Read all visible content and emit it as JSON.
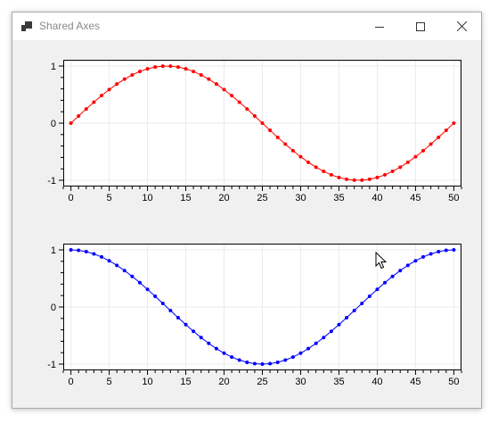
{
  "window": {
    "title": "Shared Axes",
    "icon": "app-icon",
    "controls": [
      "minimize-icon",
      "maximize-icon",
      "close-icon"
    ]
  },
  "colors": {
    "series_top": "#ff0000",
    "series_bottom": "#0000ff",
    "grid": "#ebebeb",
    "axis": "#000000"
  },
  "chart_data": [
    {
      "type": "scatter",
      "title": "",
      "xlabel": "",
      "ylabel": "",
      "xlim": [
        -1,
        51
      ],
      "ylim": [
        -1,
        1
      ],
      "xticks": [
        0,
        5,
        10,
        15,
        20,
        25,
        30,
        35,
        40,
        45,
        50
      ],
      "yticks": [
        -1,
        0,
        1
      ],
      "grid": true,
      "legend": "none",
      "series": [
        {
          "color": "#ff0000",
          "x": [
            0,
            1,
            2,
            3,
            4,
            5,
            6,
            7,
            8,
            9,
            10,
            11,
            12,
            13,
            14,
            15,
            16,
            17,
            18,
            19,
            20,
            21,
            22,
            23,
            24,
            25,
            26,
            27,
            28,
            29,
            30,
            31,
            32,
            33,
            34,
            35,
            36,
            37,
            38,
            39,
            40,
            41,
            42,
            43,
            44,
            45,
            46,
            47,
            48,
            49,
            50
          ],
          "y": [
            0,
            0.125,
            0.249,
            0.368,
            0.482,
            0.588,
            0.685,
            0.771,
            0.844,
            0.905,
            0.951,
            0.982,
            0.998,
            0.998,
            0.982,
            0.951,
            0.905,
            0.844,
            0.771,
            0.685,
            0.588,
            0.482,
            0.368,
            0.249,
            0.125,
            0,
            -0.125,
            -0.249,
            -0.368,
            -0.482,
            -0.588,
            -0.685,
            -0.771,
            -0.844,
            -0.905,
            -0.951,
            -0.982,
            -0.998,
            -0.998,
            -0.982,
            -0.951,
            -0.905,
            -0.844,
            -0.771,
            -0.685,
            -0.588,
            -0.482,
            -0.368,
            -0.249,
            -0.125,
            0
          ]
        }
      ]
    },
    {
      "type": "scatter",
      "title": "",
      "xlabel": "",
      "ylabel": "",
      "xlim": [
        -1,
        51
      ],
      "ylim": [
        -1,
        1
      ],
      "xticks": [
        0,
        5,
        10,
        15,
        20,
        25,
        30,
        35,
        40,
        45,
        50
      ],
      "yticks": [
        -1,
        0,
        1
      ],
      "grid": true,
      "legend": "none",
      "series": [
        {
          "color": "#0000ff",
          "x": [
            0,
            1,
            2,
            3,
            4,
            5,
            6,
            7,
            8,
            9,
            10,
            11,
            12,
            13,
            14,
            15,
            16,
            17,
            18,
            19,
            20,
            21,
            22,
            23,
            24,
            25,
            26,
            27,
            28,
            29,
            30,
            31,
            32,
            33,
            34,
            35,
            36,
            37,
            38,
            39,
            40,
            41,
            42,
            43,
            44,
            45,
            46,
            47,
            48,
            49,
            50
          ],
          "y": [
            1,
            0.992,
            0.969,
            0.93,
            0.876,
            0.809,
            0.729,
            0.637,
            0.536,
            0.426,
            0.309,
            0.187,
            0.063,
            -0.063,
            -0.187,
            -0.309,
            -0.426,
            -0.536,
            -0.637,
            -0.729,
            -0.809,
            -0.876,
            -0.93,
            -0.969,
            -0.992,
            -1,
            -0.992,
            -0.969,
            -0.93,
            -0.876,
            -0.809,
            -0.729,
            -0.637,
            -0.536,
            -0.426,
            -0.309,
            -0.187,
            -0.063,
            0.063,
            0.187,
            0.309,
            0.426,
            0.536,
            0.637,
            0.729,
            0.809,
            0.876,
            0.93,
            0.969,
            0.992,
            1
          ]
        }
      ]
    }
  ]
}
